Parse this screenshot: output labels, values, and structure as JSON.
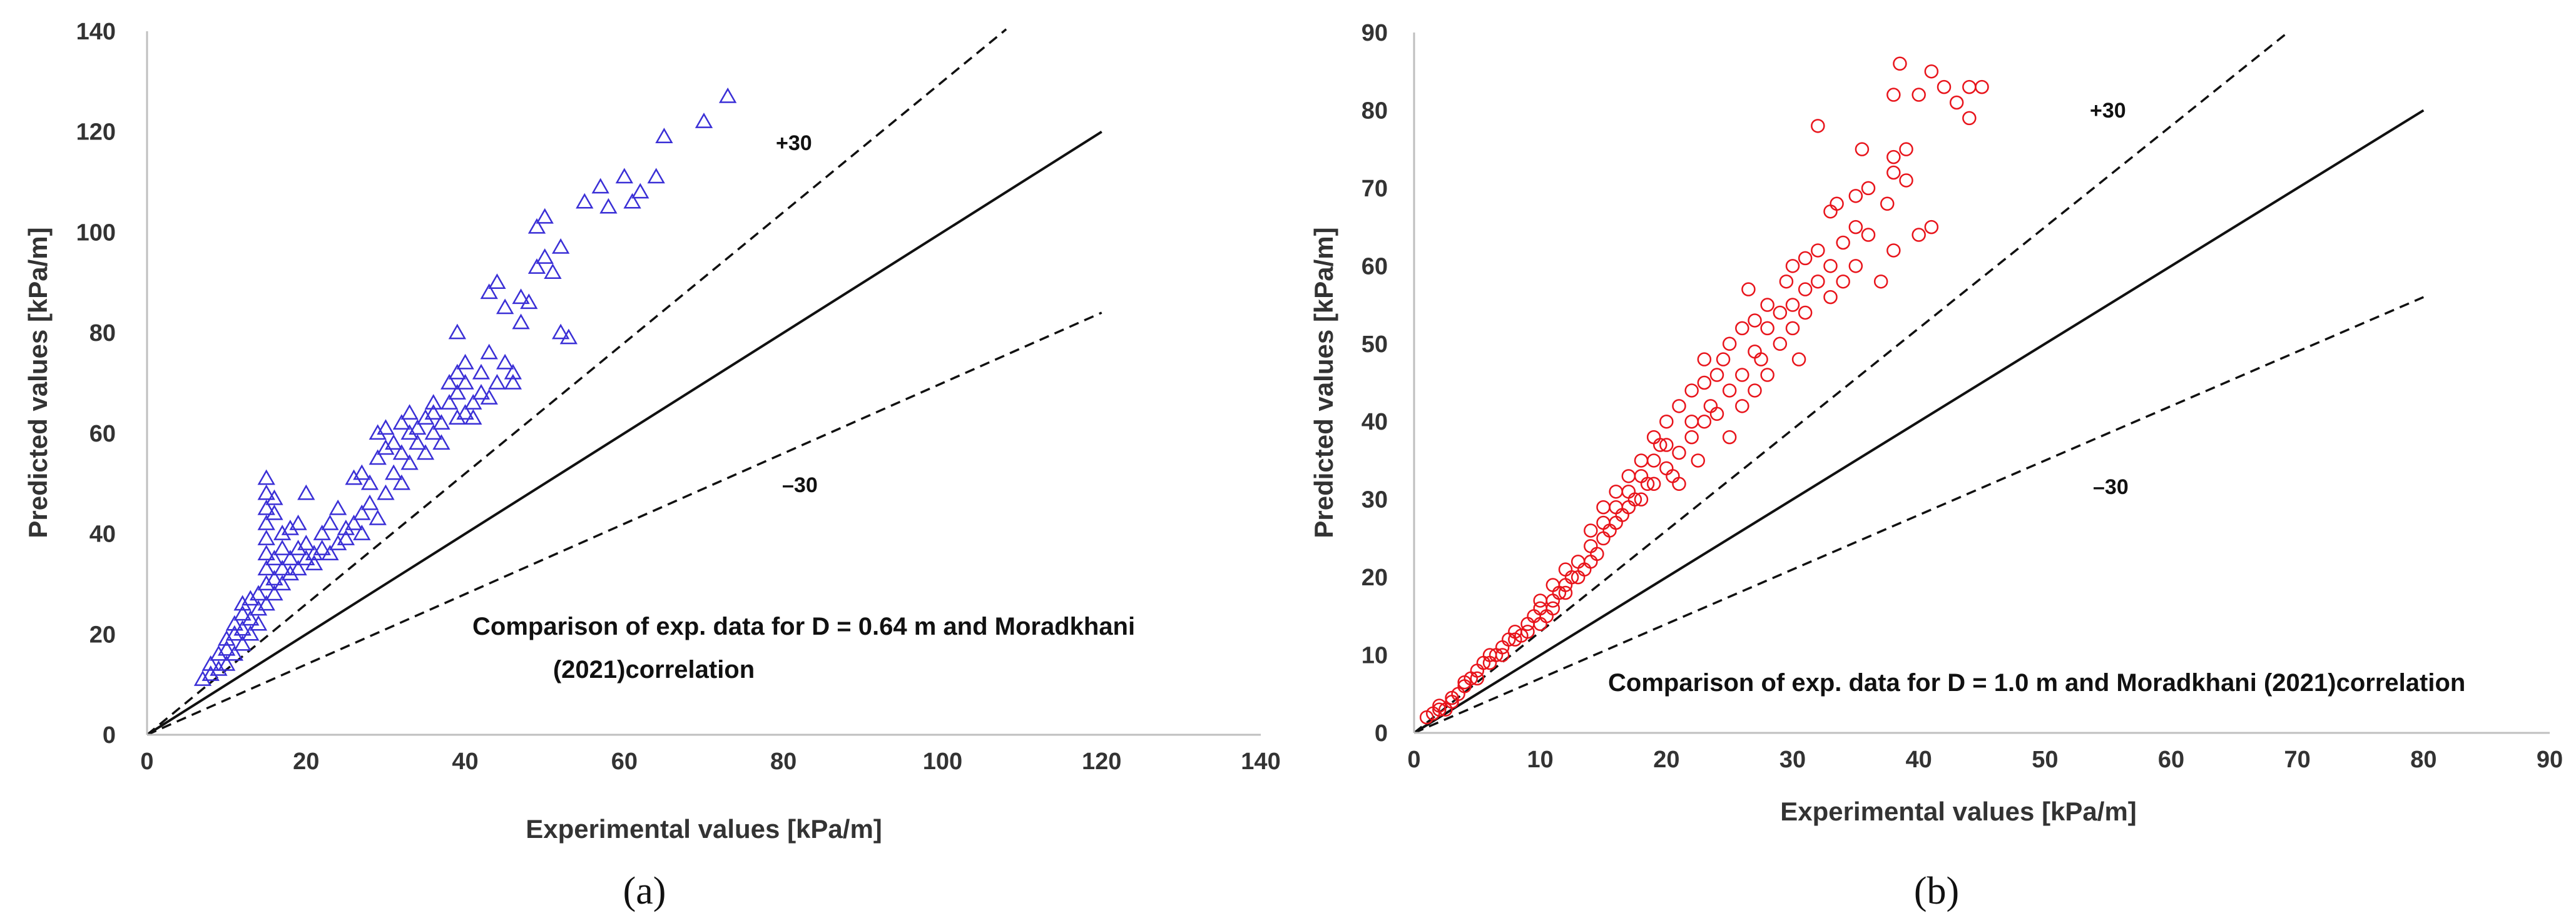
{
  "chart_data": [
    {
      "type": "scatter",
      "panel_label": "(a)",
      "xlabel": "Experimental values [kPa/m]",
      "ylabel": "Predicted values [kPa/m]",
      "xlim": [
        0,
        140
      ],
      "ylim": [
        0,
        140
      ],
      "xticks": [
        0,
        20,
        40,
        60,
        80,
        100,
        120,
        140
      ],
      "yticks": [
        0,
        20,
        40,
        60,
        80,
        100,
        120,
        140
      ],
      "marker": "triangle",
      "color": "#3a2fd6",
      "annotation": [
        "Comparison of exp. data for D = 0.64 m and Moradkhani",
        "(2021)correlation"
      ],
      "reference_lines": [
        {
          "name": "parity",
          "style": "solid",
          "x_end": 120,
          "slope": 1.0
        },
        {
          "name": "+30",
          "label": "+30",
          "style": "dashed",
          "x_end": 108,
          "slope": 1.3
        },
        {
          "name": "-30",
          "label": "–30",
          "style": "dashed",
          "x_end": 120,
          "slope": 0.7
        }
      ],
      "points": [
        [
          7,
          11
        ],
        [
          8,
          12
        ],
        [
          8,
          14
        ],
        [
          9,
          13
        ],
        [
          9,
          16
        ],
        [
          10,
          14
        ],
        [
          10,
          17
        ],
        [
          10,
          19
        ],
        [
          11,
          16
        ],
        [
          11,
          20
        ],
        [
          11,
          22
        ],
        [
          12,
          18
        ],
        [
          12,
          21
        ],
        [
          12,
          24
        ],
        [
          12,
          26
        ],
        [
          13,
          20
        ],
        [
          13,
          23
        ],
        [
          13,
          27
        ],
        [
          14,
          22
        ],
        [
          14,
          25
        ],
        [
          14,
          28
        ],
        [
          15,
          26
        ],
        [
          15,
          30
        ],
        [
          15,
          33
        ],
        [
          15,
          36
        ],
        [
          15,
          39
        ],
        [
          15,
          42
        ],
        [
          15,
          45
        ],
        [
          15,
          48
        ],
        [
          15,
          51
        ],
        [
          16,
          28
        ],
        [
          16,
          31
        ],
        [
          16,
          35
        ],
        [
          16,
          44
        ],
        [
          16,
          47
        ],
        [
          17,
          30
        ],
        [
          17,
          33
        ],
        [
          17,
          37
        ],
        [
          17,
          40
        ],
        [
          18,
          32
        ],
        [
          18,
          35
        ],
        [
          18,
          41
        ],
        [
          19,
          33
        ],
        [
          19,
          37
        ],
        [
          19,
          42
        ],
        [
          20,
          35
        ],
        [
          20,
          38
        ],
        [
          20,
          48
        ],
        [
          21,
          34
        ],
        [
          21,
          36
        ],
        [
          22,
          37
        ],
        [
          22,
          40
        ],
        [
          23,
          36
        ],
        [
          23,
          42
        ],
        [
          24,
          38
        ],
        [
          24,
          45
        ],
        [
          25,
          39
        ],
        [
          25,
          41
        ],
        [
          26,
          42
        ],
        [
          26,
          51
        ],
        [
          27,
          40
        ],
        [
          27,
          44
        ],
        [
          27,
          52
        ],
        [
          28,
          46
        ],
        [
          28,
          50
        ],
        [
          29,
          43
        ],
        [
          29,
          55
        ],
        [
          29,
          60
        ],
        [
          30,
          48
        ],
        [
          30,
          57
        ],
        [
          30,
          61
        ],
        [
          31,
          52
        ],
        [
          31,
          58
        ],
        [
          32,
          50
        ],
        [
          32,
          56
        ],
        [
          32,
          62
        ],
        [
          33,
          54
        ],
        [
          33,
          60
        ],
        [
          33,
          64
        ],
        [
          34,
          58
        ],
        [
          34,
          61
        ],
        [
          35,
          56
        ],
        [
          35,
          63
        ],
        [
          36,
          60
        ],
        [
          36,
          64
        ],
        [
          36,
          66
        ],
        [
          37,
          58
        ],
        [
          37,
          62
        ],
        [
          38,
          66
        ],
        [
          38,
          70
        ],
        [
          39,
          63
        ],
        [
          39,
          68
        ],
        [
          39,
          72
        ],
        [
          39,
          80
        ],
        [
          40,
          64
        ],
        [
          40,
          70
        ],
        [
          40,
          74
        ],
        [
          41,
          66
        ],
        [
          41,
          63
        ],
        [
          42,
          68
        ],
        [
          42,
          72
        ],
        [
          43,
          67
        ],
        [
          43,
          76
        ],
        [
          43,
          88
        ],
        [
          44,
          70
        ],
        [
          44,
          90
        ],
        [
          45,
          74
        ],
        [
          45,
          85
        ],
        [
          46,
          72
        ],
        [
          46,
          70
        ],
        [
          47,
          82
        ],
        [
          47,
          87
        ],
        [
          48,
          86
        ],
        [
          49,
          93
        ],
        [
          49,
          101
        ],
        [
          50,
          95
        ],
        [
          50,
          103
        ],
        [
          51,
          92
        ],
        [
          52,
          80
        ],
        [
          52,
          97
        ],
        [
          53,
          79
        ],
        [
          55,
          106
        ],
        [
          57,
          109
        ],
        [
          58,
          105
        ],
        [
          60,
          111
        ],
        [
          61,
          106
        ],
        [
          62,
          108
        ],
        [
          64,
          111
        ],
        [
          65,
          119
        ],
        [
          70,
          122
        ],
        [
          73,
          127
        ]
      ]
    },
    {
      "type": "scatter",
      "panel_label": "(b)",
      "xlabel": "Experimental values [kPa/m]",
      "ylabel": "Predicted values [kPa/m]",
      "xlim": [
        0,
        90
      ],
      "ylim": [
        0,
        90
      ],
      "xticks": [
        0,
        10,
        20,
        30,
        40,
        50,
        60,
        70,
        80,
        90
      ],
      "yticks": [
        0,
        10,
        20,
        30,
        40,
        50,
        60,
        70,
        80,
        90
      ],
      "marker": "circle",
      "color": "#e8141b",
      "annotation": [
        "Comparison of exp. data for D = 1.0 m and Moradkhani (2021)correlation"
      ],
      "reference_lines": [
        {
          "name": "parity",
          "style": "solid",
          "x_end": 80,
          "slope": 1.0
        },
        {
          "name": "+30",
          "label": "+30",
          "style": "dashed",
          "x_end": 69,
          "slope": 1.3
        },
        {
          "name": "-30",
          "label": "–30",
          "style": "dashed",
          "x_end": 80,
          "slope": 0.7
        }
      ],
      "points": [
        [
          1,
          2
        ],
        [
          1.5,
          2.5
        ],
        [
          2,
          3
        ],
        [
          2,
          3.5
        ],
        [
          2.5,
          3
        ],
        [
          3,
          4
        ],
        [
          3,
          4.5
        ],
        [
          3.5,
          5
        ],
        [
          4,
          6
        ],
        [
          4,
          6.5
        ],
        [
          4.5,
          7
        ],
        [
          5,
          7
        ],
        [
          5,
          8
        ],
        [
          5.5,
          9
        ],
        [
          6,
          9
        ],
        [
          6,
          10
        ],
        [
          6.5,
          10
        ],
        [
          7,
          10
        ],
        [
          7,
          11
        ],
        [
          7.5,
          12
        ],
        [
          8,
          12
        ],
        [
          8,
          13
        ],
        [
          8.5,
          12.5
        ],
        [
          9,
          13
        ],
        [
          9,
          14
        ],
        [
          9.5,
          15
        ],
        [
          10,
          14
        ],
        [
          10,
          16
        ],
        [
          10,
          17
        ],
        [
          10.5,
          15
        ],
        [
          11,
          16
        ],
        [
          11,
          17
        ],
        [
          11,
          19
        ],
        [
          11.5,
          18
        ],
        [
          12,
          18
        ],
        [
          12,
          19
        ],
        [
          12,
          21
        ],
        [
          12.5,
          20
        ],
        [
          13,
          20
        ],
        [
          13,
          22
        ],
        [
          13.5,
          21
        ],
        [
          14,
          22
        ],
        [
          14,
          24
        ],
        [
          14,
          26
        ],
        [
          14.5,
          23
        ],
        [
          15,
          25
        ],
        [
          15,
          27
        ],
        [
          15,
          29
        ],
        [
          15.5,
          26
        ],
        [
          16,
          27
        ],
        [
          16,
          29
        ],
        [
          16,
          31
        ],
        [
          16.5,
          28
        ],
        [
          17,
          29
        ],
        [
          17,
          31
        ],
        [
          17,
          33
        ],
        [
          17.5,
          30
        ],
        [
          18,
          30
        ],
        [
          18,
          33
        ],
        [
          18,
          35
        ],
        [
          18.5,
          32
        ],
        [
          19,
          32
        ],
        [
          19,
          35
        ],
        [
          19,
          38
        ],
        [
          19.5,
          37
        ],
        [
          20,
          34
        ],
        [
          20,
          37
        ],
        [
          20,
          40
        ],
        [
          20.5,
          33
        ],
        [
          21,
          32
        ],
        [
          21,
          36
        ],
        [
          21,
          42
        ],
        [
          22,
          38
        ],
        [
          22,
          40
        ],
        [
          22,
          44
        ],
        [
          22.5,
          35
        ],
        [
          23,
          40
        ],
        [
          23,
          45
        ],
        [
          23,
          48
        ],
        [
          23.5,
          42
        ],
        [
          24,
          41
        ],
        [
          24,
          46
        ],
        [
          24.5,
          48
        ],
        [
          25,
          38
        ],
        [
          25,
          44
        ],
        [
          25,
          50
        ],
        [
          26,
          42
        ],
        [
          26,
          46
        ],
        [
          26,
          52
        ],
        [
          26.5,
          57
        ],
        [
          27,
          44
        ],
        [
          27,
          49
        ],
        [
          27,
          53
        ],
        [
          27.5,
          48
        ],
        [
          28,
          46
        ],
        [
          28,
          52
        ],
        [
          28,
          55
        ],
        [
          29,
          50
        ],
        [
          29,
          54
        ],
        [
          29.5,
          58
        ],
        [
          30,
          52
        ],
        [
          30,
          55
        ],
        [
          30,
          60
        ],
        [
          30.5,
          48
        ],
        [
          31,
          54
        ],
        [
          31,
          57
        ],
        [
          31,
          61
        ],
        [
          32,
          58
        ],
        [
          32,
          62
        ],
        [
          32,
          78
        ],
        [
          33,
          56
        ],
        [
          33,
          60
        ],
        [
          33,
          67
        ],
        [
          33.5,
          68
        ],
        [
          34,
          58
        ],
        [
          34,
          63
        ],
        [
          35,
          60
        ],
        [
          35,
          65
        ],
        [
          35,
          69
        ],
        [
          35.5,
          75
        ],
        [
          36,
          64
        ],
        [
          36,
          70
        ],
        [
          37,
          58
        ],
        [
          37.5,
          68
        ],
        [
          38,
          62
        ],
        [
          38,
          72
        ],
        [
          38,
          74
        ],
        [
          38,
          82
        ],
        [
          38.5,
          86
        ],
        [
          39,
          71
        ],
        [
          39,
          75
        ],
        [
          40,
          64
        ],
        [
          40,
          82
        ],
        [
          41,
          85
        ],
        [
          41,
          65
        ],
        [
          42,
          83
        ],
        [
          43,
          81
        ],
        [
          44,
          79
        ],
        [
          44,
          83
        ],
        [
          45,
          83
        ]
      ]
    }
  ]
}
